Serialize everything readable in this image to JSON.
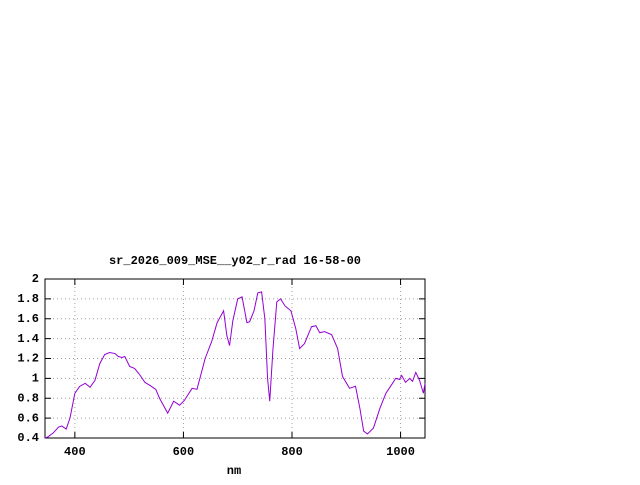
{
  "chart_data": {
    "type": "line",
    "title": "sr_2026_009_MSE__y02_r_rad 16-58-00",
    "x_label": "nm",
    "xlim": [
      345,
      1045
    ],
    "xticks": [
      400,
      600,
      800,
      1000
    ],
    "ylim": [
      0.4,
      2
    ],
    "yticks": [
      0.4,
      0.6,
      0.8,
      1,
      1.2,
      1.4,
      1.6,
      1.8,
      2
    ],
    "grid": true,
    "series": [
      {
        "name": "sr_2026_009_MSE__y02_r_rad",
        "color": "#9400d3",
        "x": [
          345,
          350,
          360,
          370,
          376,
          384,
          391,
          400,
          409,
          419,
          428,
          437,
          446,
          455,
          464,
          474,
          480,
          487,
          492,
          501,
          510,
          519,
          529,
          538,
          549,
          556,
          571,
          582,
          593,
          602,
          616,
          625,
          640,
          652,
          662,
          674,
          680,
          685,
          691,
          700,
          708,
          717,
          722,
          730,
          737,
          744,
          750,
          755,
          759,
          765,
          772,
          779,
          787,
          798,
          807,
          814,
          823,
          836,
          844,
          851,
          860,
          873,
          884,
          893,
          906,
          917,
          925,
          932,
          939,
          950,
          962,
          973,
          984,
          991,
          998,
          1002,
          1009,
          1017,
          1022,
          1028,
          1035,
          1042,
          1045
        ],
        "values": [
          0.4,
          0.41,
          0.45,
          0.51,
          0.52,
          0.49,
          0.6,
          0.85,
          0.92,
          0.95,
          0.91,
          0.98,
          1.15,
          1.24,
          1.26,
          1.25,
          1.22,
          1.21,
          1.22,
          1.12,
          1.1,
          1.04,
          0.96,
          0.93,
          0.89,
          0.8,
          0.65,
          0.77,
          0.73,
          0.78,
          0.9,
          0.89,
          1.2,
          1.37,
          1.56,
          1.68,
          1.43,
          1.33,
          1.58,
          1.8,
          1.82,
          1.56,
          1.57,
          1.68,
          1.86,
          1.87,
          1.6,
          1.0,
          0.77,
          1.3,
          1.77,
          1.8,
          1.73,
          1.68,
          1.5,
          1.3,
          1.35,
          1.52,
          1.53,
          1.46,
          1.47,
          1.44,
          1.3,
          1.02,
          0.9,
          0.92,
          0.7,
          0.47,
          0.44,
          0.5,
          0.7,
          0.85,
          0.94,
          1.0,
          0.99,
          1.03,
          0.96,
          1.0,
          0.97,
          1.06,
          0.98,
          0.85,
          0.95
        ]
      }
    ]
  }
}
